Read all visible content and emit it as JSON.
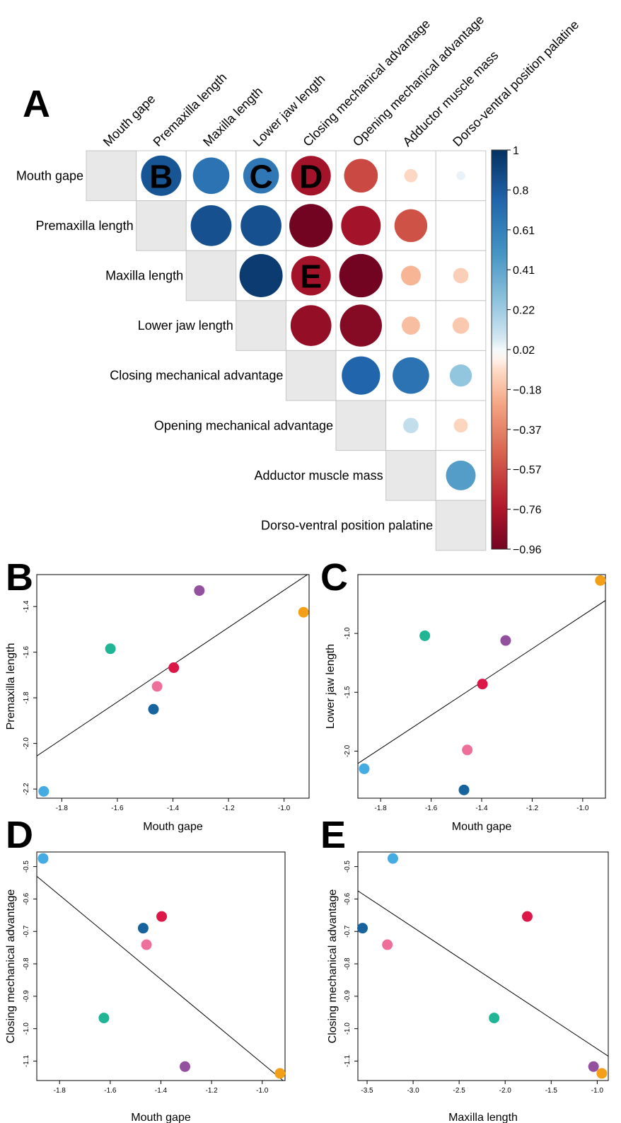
{
  "figure": {
    "panel_letters": [
      "A",
      "B",
      "C",
      "D",
      "E"
    ]
  },
  "chart_data": [
    {
      "type": "heatmap",
      "panel": "A",
      "variables": [
        "Mouth gape",
        "Premaxilla length",
        "Maxilla length",
        "Lower jaw length",
        "Closing mechanical advantage",
        "Opening mechanical advantage",
        "Adductor muscle mass",
        "Dorso-ventral  position palatine"
      ],
      "matrix": [
        [
          null,
          0.83,
          0.68,
          0.65,
          -0.8,
          -0.58,
          -0.09,
          0.04
        ],
        [
          null,
          null,
          0.85,
          0.85,
          -0.96,
          -0.8,
          -0.55,
          0.0
        ],
        [
          null,
          null,
          null,
          0.95,
          -0.8,
          -0.96,
          -0.2,
          -0.12
        ],
        [
          null,
          null,
          null,
          null,
          -0.85,
          -0.9,
          -0.17,
          -0.14
        ],
        [
          null,
          null,
          null,
          null,
          null,
          0.75,
          0.68,
          0.25
        ],
        [
          null,
          null,
          null,
          null,
          null,
          null,
          0.12,
          -0.1
        ],
        [
          null,
          null,
          null,
          null,
          null,
          null,
          null,
          0.45
        ],
        [
          null,
          null,
          null,
          null,
          null,
          null,
          null,
          null
        ]
      ],
      "cell_letters": [
        {
          "row": 0,
          "col": 1,
          "text": "B"
        },
        {
          "row": 0,
          "col": 3,
          "text": "C"
        },
        {
          "row": 0,
          "col": 4,
          "text": "D"
        },
        {
          "row": 2,
          "col": 4,
          "text": "E"
        }
      ],
      "colorbar_ticks": [
        "1",
        "0.8",
        "0.61",
        "0.41",
        "0.22",
        "0.02",
        "−0.18",
        "−0.37",
        "−0.57",
        "−0.76",
        "−0.96"
      ],
      "colorbar_range": [
        -0.96,
        1
      ]
    },
    {
      "type": "scatter",
      "panel": "B",
      "xlabel": "Mouth gape",
      "ylabel": "Premaxilla length",
      "xlim": [
        -1.89,
        -0.91
      ],
      "ylim": [
        -2.24,
        -1.26
      ],
      "xticks": [
        -1.8,
        -1.6,
        -1.4,
        -1.2,
        -1.0
      ],
      "xtick_labels": [
        "-1.8",
        "-1.6",
        "-1.4",
        "-1.2",
        "-1.0"
      ],
      "yticks": [
        -2.2,
        -2.0,
        -1.8,
        -1.6,
        -1.4
      ],
      "ytick_labels": [
        "-2.2",
        "-2.0",
        "-1.8",
        "-1.6",
        "-1.4"
      ],
      "points": [
        {
          "x": -1.865,
          "y": -2.21,
          "color": "#45ABE3"
        },
        {
          "x": -1.625,
          "y": -1.585,
          "color": "#1FB595"
        },
        {
          "x": -1.47,
          "y": -1.85,
          "color": "#16639E"
        },
        {
          "x": -1.457,
          "y": -1.75,
          "color": "#EF6F9B"
        },
        {
          "x": -1.397,
          "y": -1.668,
          "color": "#DC1848"
        },
        {
          "x": -1.305,
          "y": -1.33,
          "color": "#92509F"
        },
        {
          "x": -0.93,
          "y": -1.425,
          "color": "#F3A018"
        }
      ],
      "fit_line": [
        [
          -1.89,
          -2.055
        ],
        [
          -0.91,
          -1.255
        ]
      ]
    },
    {
      "type": "scatter",
      "panel": "C",
      "xlabel": "Mouth gape",
      "ylabel": "Lower jaw length",
      "xlim": [
        -1.89,
        -0.91
      ],
      "ylim": [
        -2.4,
        -0.5
      ],
      "xticks": [
        -1.8,
        -1.6,
        -1.4,
        -1.2,
        -1.0
      ],
      "xtick_labels": [
        "-1.8",
        "-1.6",
        "-1.4",
        "-1.2",
        "-1.0"
      ],
      "yticks": [
        -2.0,
        -1.5,
        -1.0
      ],
      "ytick_labels": [
        "-2.0",
        "-1.5",
        "-1.0"
      ],
      "points": [
        {
          "x": -1.865,
          "y": -2.15,
          "color": "#45ABE3"
        },
        {
          "x": -1.625,
          "y": -1.02,
          "color": "#1FB595"
        },
        {
          "x": -1.47,
          "y": -2.33,
          "color": "#16639E"
        },
        {
          "x": -1.457,
          "y": -1.99,
          "color": "#EF6F9B"
        },
        {
          "x": -1.397,
          "y": -1.43,
          "color": "#DC1848"
        },
        {
          "x": -1.305,
          "y": -1.06,
          "color": "#92509F"
        },
        {
          "x": -0.93,
          "y": -0.55,
          "color": "#F3A018"
        }
      ],
      "fit_line": [
        [
          -1.89,
          -2.105
        ],
        [
          -0.91,
          -0.72
        ]
      ]
    },
    {
      "type": "scatter",
      "panel": "D",
      "xlabel": "Mouth gape",
      "ylabel": "Closing mechanical advantage",
      "xlim": [
        -1.89,
        -0.91
      ],
      "ylim": [
        -1.16,
        -0.455
      ],
      "xticks": [
        -1.8,
        -1.6,
        -1.4,
        -1.2,
        -1.0
      ],
      "xtick_labels": [
        "-1.8",
        "-1.6",
        "-1.4",
        "-1.2",
        "-1.0"
      ],
      "yticks": [
        -1.1,
        -1.0,
        -0.9,
        -0.8,
        -0.7,
        -0.6,
        -0.5
      ],
      "ytick_labels": [
        "-1.1",
        "-1.0",
        "-0.9",
        "-0.8",
        "-0.7",
        "-0.6",
        "-0.5"
      ],
      "points": [
        {
          "x": -1.865,
          "y": -0.475,
          "color": "#45ABE3"
        },
        {
          "x": -1.625,
          "y": -0.967,
          "color": "#1FB595"
        },
        {
          "x": -1.47,
          "y": -0.69,
          "color": "#16639E"
        },
        {
          "x": -1.457,
          "y": -0.741,
          "color": "#EF6F9B"
        },
        {
          "x": -1.397,
          "y": -0.654,
          "color": "#DC1848"
        },
        {
          "x": -1.305,
          "y": -1.117,
          "color": "#92509F"
        },
        {
          "x": -0.93,
          "y": -1.138,
          "color": "#F3A018"
        }
      ],
      "fit_line": [
        [
          -1.89,
          -0.53
        ],
        [
          -0.91,
          -1.165
        ]
      ]
    },
    {
      "type": "scatter",
      "panel": "E",
      "xlabel": "Maxilla length",
      "ylabel": "Closing mechanical advantage",
      "xlim": [
        -3.6,
        -0.88
      ],
      "ylim": [
        -1.16,
        -0.455
      ],
      "xticks": [
        -3.5,
        -3.0,
        -2.5,
        -2.0,
        -1.5,
        -1.0
      ],
      "xtick_labels": [
        "-3.5",
        "-3.0",
        "-2.5",
        "-2.0",
        "-1.5",
        "-1.0"
      ],
      "yticks": [
        -1.1,
        -1.0,
        -0.9,
        -0.8,
        -0.7,
        -0.6,
        -0.5
      ],
      "ytick_labels": [
        "-1.1",
        "-1.0",
        "-0.9",
        "-0.8",
        "-0.7",
        "-0.6",
        "-0.5"
      ],
      "points": [
        {
          "x": -3.22,
          "y": -0.475,
          "color": "#45ABE3"
        },
        {
          "x": -2.12,
          "y": -0.967,
          "color": "#1FB595"
        },
        {
          "x": -3.55,
          "y": -0.69,
          "color": "#16639E"
        },
        {
          "x": -3.28,
          "y": -0.741,
          "color": "#EF6F9B"
        },
        {
          "x": -1.76,
          "y": -0.654,
          "color": "#DC1848"
        },
        {
          "x": -1.04,
          "y": -1.117,
          "color": "#92509F"
        },
        {
          "x": -0.95,
          "y": -1.138,
          "color": "#F3A018"
        }
      ],
      "fit_line": [
        [
          -3.6,
          -0.575
        ],
        [
          -0.88,
          -1.085
        ]
      ]
    }
  ]
}
